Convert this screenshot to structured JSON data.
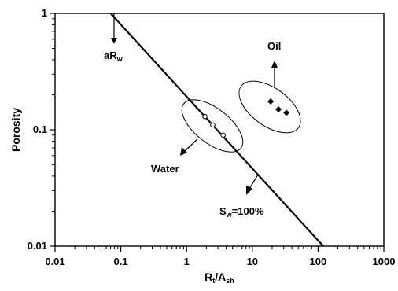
{
  "chart_data": {
    "type": "scatter",
    "x_scale": "log",
    "y_scale": "log",
    "xlim": [
      0.01,
      1000
    ],
    "ylim": [
      0.01,
      1
    ],
    "grid": false,
    "legend": "none",
    "x_ticks": [
      "0.01",
      "0.1",
      "1",
      "10",
      "100",
      "1000"
    ],
    "y_ticks": [
      "0.01",
      "0.1",
      "1"
    ],
    "xlabel": {
      "main": "R",
      "sub1": "t",
      "mid": "/A",
      "sub2": "sh"
    },
    "ylabel": "Porosity",
    "series": [
      {
        "marker": "open-circle",
        "x": [
          1.9,
          2.5,
          3.6
        ],
        "y": [
          0.13,
          0.11,
          0.09
        ]
      },
      {
        "marker": "filled-diamond",
        "x": [
          19,
          25,
          33
        ],
        "y": [
          0.175,
          0.15,
          0.14
        ]
      }
    ],
    "line": {
      "x": [
        0.07,
        120
      ],
      "y": [
        1,
        0.01
      ]
    },
    "annotations": {
      "arw": {
        "main": "aR",
        "sub": "w"
      },
      "oil": "Oil",
      "water": "Water",
      "sw": {
        "main": "S",
        "sub": "w",
        "rest": "=100%"
      }
    }
  }
}
